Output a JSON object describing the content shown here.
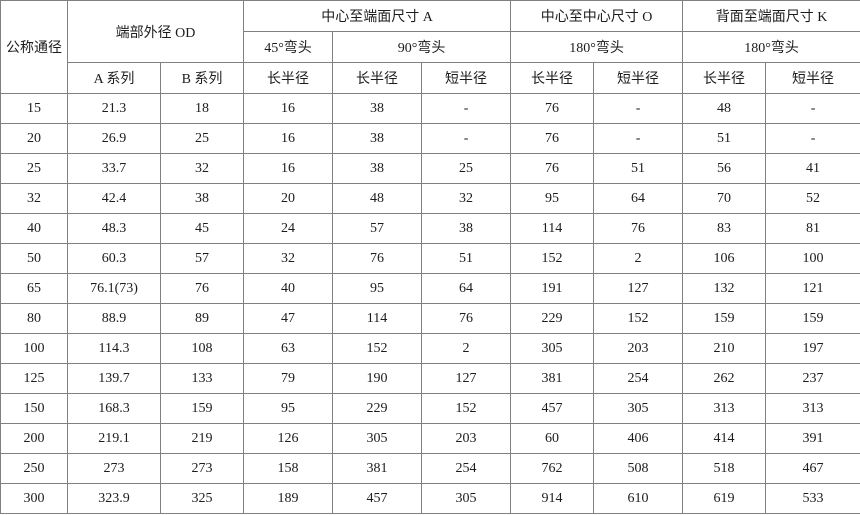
{
  "style": {
    "border_color": "#808080",
    "text_color": "#1c1c1c",
    "background_color": "#ffffff"
  },
  "table": {
    "header": {
      "nominal": "公称通径",
      "od_group": "端部外径 OD",
      "center_to_end_group": "中心至端面尺寸 A",
      "center_to_center_group": "中心至中心尺寸 O",
      "back_to_end_group": "背面至端面尺寸 K",
      "elbow_45": "45°弯头",
      "elbow_90": "90°弯头",
      "elbow_180_o": "180°弯头",
      "elbow_180_k": "180°弯头",
      "sub": [
        "A 系列",
        "B 系列",
        "长半径",
        "长半径",
        "短半径",
        "长半径",
        "短半径",
        "长半径",
        "短半径"
      ]
    },
    "rows": [
      [
        "15",
        "21.3",
        "18",
        "16",
        "38",
        "-",
        "76",
        "-",
        "48",
        "-"
      ],
      [
        "20",
        "26.9",
        "25",
        "16",
        "38",
        "-",
        "76",
        "-",
        "51",
        "-"
      ],
      [
        "25",
        "33.7",
        "32",
        "16",
        "38",
        "25",
        "76",
        "51",
        "56",
        "41"
      ],
      [
        "32",
        "42.4",
        "38",
        "20",
        "48",
        "32",
        "95",
        "64",
        "70",
        "52"
      ],
      [
        "40",
        "48.3",
        "45",
        "24",
        "57",
        "38",
        "114",
        "76",
        "83",
        "81"
      ],
      [
        "50",
        "60.3",
        "57",
        "32",
        "76",
        "51",
        "152",
        "2",
        "106",
        "100"
      ],
      [
        "65",
        "76.1(73)",
        "76",
        "40",
        "95",
        "64",
        "191",
        "127",
        "132",
        "121"
      ],
      [
        "80",
        "88.9",
        "89",
        "47",
        "114",
        "76",
        "229",
        "152",
        "159",
        "159"
      ],
      [
        "100",
        "114.3",
        "108",
        "63",
        "152",
        "2",
        "305",
        "203",
        "210",
        "197"
      ],
      [
        "125",
        "139.7",
        "133",
        "79",
        "190",
        "127",
        "381",
        "254",
        "262",
        "237"
      ],
      [
        "150",
        "168.3",
        "159",
        "95",
        "229",
        "152",
        "457",
        "305",
        "313",
        "313"
      ],
      [
        "200",
        "219.1",
        "219",
        "126",
        "305",
        "203",
        "60",
        "406",
        "414",
        "391"
      ],
      [
        "250",
        "273",
        "273",
        "158",
        "381",
        "254",
        "762",
        "508",
        "518",
        "467"
      ],
      [
        "300",
        "323.9",
        "325",
        "189",
        "457",
        "305",
        "914",
        "610",
        "619",
        "533"
      ]
    ]
  }
}
